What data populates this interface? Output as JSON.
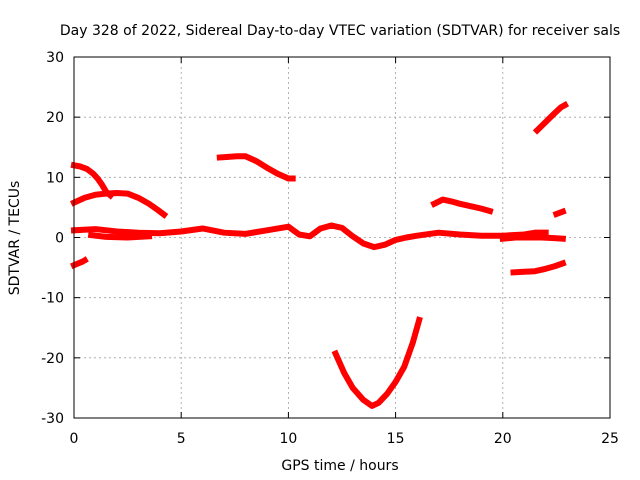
{
  "chart_data": {
    "type": "scatter",
    "title": "Day 328 of 2022, Sidereal Day-to-day VTEC variation (SDTVAR) for receiver sals",
    "xlabel": "GPS time / hours",
    "ylabel": "SDTVAR / TECUs",
    "xlim": [
      0,
      25
    ],
    "ylim": [
      -30,
      30
    ],
    "xticks": [
      0,
      5,
      10,
      15,
      20,
      25
    ],
    "yticks": [
      -30,
      -20,
      -10,
      0,
      10,
      20,
      30
    ],
    "grid": true,
    "color": "#ff0000",
    "series": [
      {
        "name": "s1",
        "points": [
          [
            0.0,
            -4.6
          ],
          [
            0.2,
            -4.3
          ],
          [
            0.4,
            -4.0
          ],
          [
            0.5,
            -3.8
          ]
        ]
      },
      {
        "name": "s2",
        "points": [
          [
            0.0,
            12.0
          ],
          [
            0.3,
            11.8
          ],
          [
            0.6,
            11.4
          ],
          [
            0.9,
            10.6
          ],
          [
            1.1,
            9.8
          ],
          [
            1.3,
            8.8
          ],
          [
            1.5,
            7.6
          ],
          [
            1.7,
            7.0
          ]
        ]
      },
      {
        "name": "s3",
        "points": [
          [
            0.0,
            5.8
          ],
          [
            0.5,
            6.6
          ],
          [
            1.0,
            7.1
          ],
          [
            1.5,
            7.3
          ],
          [
            2.0,
            7.4
          ],
          [
            2.5,
            7.3
          ],
          [
            3.0,
            6.6
          ],
          [
            3.5,
            5.6
          ],
          [
            3.9,
            4.6
          ],
          [
            4.2,
            3.8
          ]
        ]
      },
      {
        "name": "s4",
        "points": [
          [
            0.0,
            1.2
          ],
          [
            1.0,
            1.4
          ],
          [
            2.0,
            1.0
          ],
          [
            3.0,
            0.8
          ],
          [
            4.0,
            0.7
          ],
          [
            5.0,
            1.0
          ],
          [
            6.0,
            1.5
          ],
          [
            7.0,
            0.8
          ],
          [
            8.0,
            0.6
          ],
          [
            9.0,
            1.2
          ],
          [
            10.0,
            1.8
          ],
          [
            10.5,
            0.5
          ],
          [
            11.0,
            0.2
          ],
          [
            11.5,
            1.5
          ],
          [
            12.0,
            2.0
          ],
          [
            12.5,
            1.6
          ],
          [
            13.0,
            0.2
          ],
          [
            13.5,
            -1.0
          ],
          [
            14.0,
            -1.6
          ],
          [
            14.5,
            -1.2
          ],
          [
            15.0,
            -0.4
          ],
          [
            15.5,
            0.0
          ],
          [
            16.0,
            0.3
          ],
          [
            17.0,
            0.8
          ],
          [
            18.0,
            0.5
          ],
          [
            19.0,
            0.3
          ],
          [
            20.0,
            0.3
          ],
          [
            21.0,
            0.5
          ],
          [
            21.5,
            0.8
          ],
          [
            22.0,
            0.8
          ]
        ]
      },
      {
        "name": "s5",
        "points": [
          [
            0.8,
            0.4
          ],
          [
            1.5,
            0.1
          ],
          [
            2.5,
            0.0
          ],
          [
            3.5,
            0.2
          ]
        ]
      },
      {
        "name": "s6",
        "points": [
          [
            6.8,
            13.3
          ],
          [
            7.2,
            13.4
          ],
          [
            7.6,
            13.5
          ],
          [
            8.0,
            13.5
          ],
          [
            8.5,
            12.7
          ],
          [
            9.0,
            11.6
          ],
          [
            9.5,
            10.6
          ],
          [
            10.0,
            9.8
          ],
          [
            10.2,
            9.8
          ]
        ]
      },
      {
        "name": "s7",
        "points": [
          [
            12.2,
            -19.3
          ],
          [
            12.6,
            -22.5
          ],
          [
            13.0,
            -25.0
          ],
          [
            13.5,
            -27.0
          ],
          [
            13.9,
            -28.0
          ],
          [
            14.2,
            -27.5
          ],
          [
            14.6,
            -26.0
          ],
          [
            15.0,
            -24.0
          ],
          [
            15.4,
            -21.5
          ],
          [
            15.8,
            -17.5
          ],
          [
            16.1,
            -13.7
          ]
        ]
      },
      {
        "name": "s8",
        "points": [
          [
            16.8,
            5.6
          ],
          [
            17.2,
            6.3
          ],
          [
            17.6,
            6.0
          ],
          [
            18.0,
            5.6
          ],
          [
            18.5,
            5.2
          ],
          [
            19.0,
            4.8
          ],
          [
            19.4,
            4.4
          ]
        ]
      },
      {
        "name": "s9",
        "points": [
          [
            20.0,
            -0.2
          ],
          [
            20.6,
            0.0
          ],
          [
            21.2,
            0.0
          ],
          [
            21.8,
            0.0
          ],
          [
            22.4,
            -0.1
          ],
          [
            22.8,
            -0.2
          ]
        ]
      },
      {
        "name": "s10",
        "points": [
          [
            20.5,
            -5.8
          ],
          [
            21.0,
            -5.7
          ],
          [
            21.5,
            -5.6
          ],
          [
            22.0,
            -5.2
          ],
          [
            22.4,
            -4.8
          ],
          [
            22.8,
            -4.3
          ]
        ]
      },
      {
        "name": "s11",
        "points": [
          [
            22.5,
            3.9
          ],
          [
            22.8,
            4.3
          ]
        ]
      },
      {
        "name": "s12",
        "points": [
          [
            21.6,
            17.8
          ],
          [
            22.0,
            19.2
          ],
          [
            22.4,
            20.6
          ],
          [
            22.7,
            21.6
          ],
          [
            22.9,
            22.0
          ]
        ]
      }
    ]
  }
}
